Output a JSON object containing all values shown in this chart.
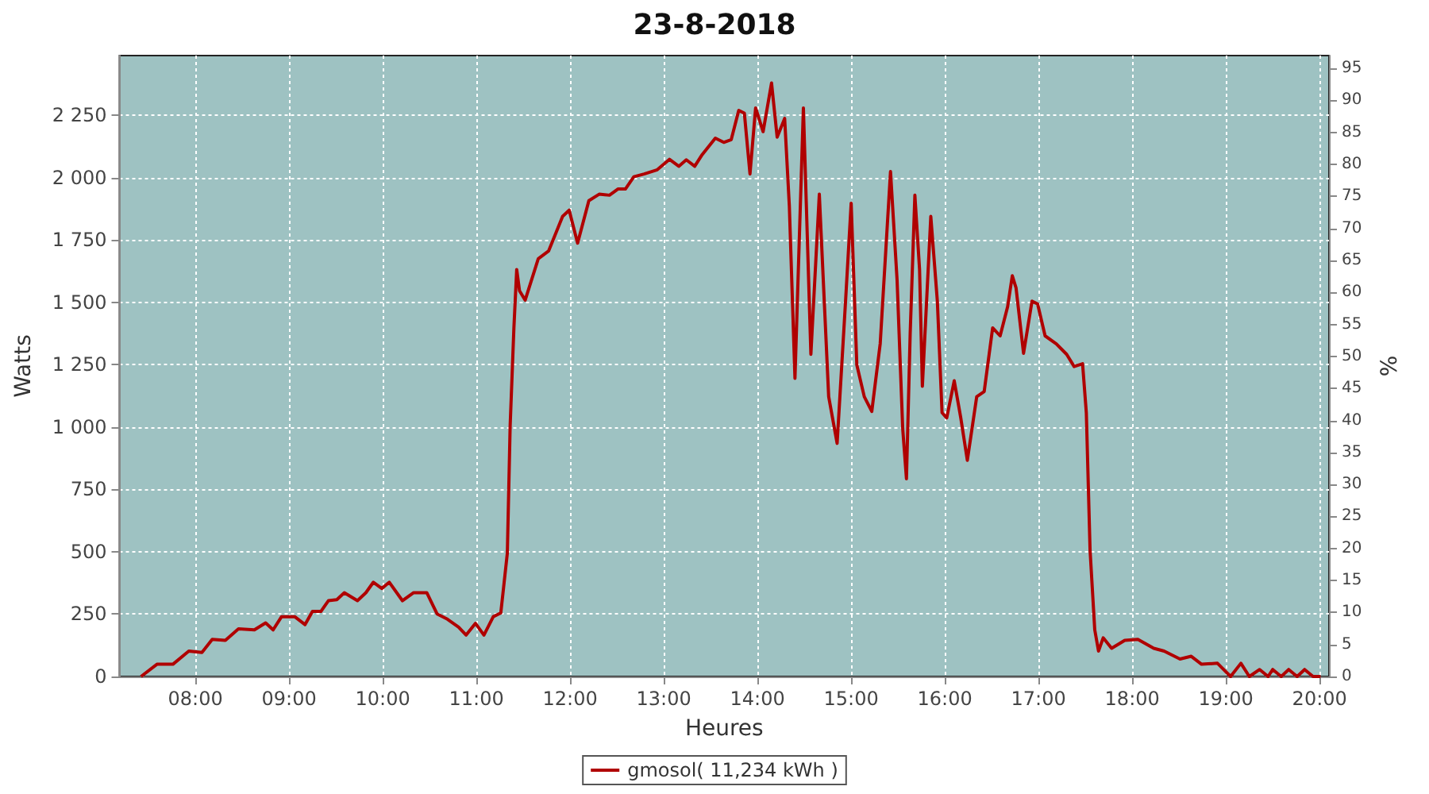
{
  "chart_data": {
    "type": "line",
    "title": "23-8-2018",
    "xlabel": "Heures",
    "ylabel": "Watts",
    "y2label": "%",
    "x": [
      7.42,
      7.59,
      7.76,
      7.93,
      8.07,
      8.18,
      8.32,
      8.46,
      8.63,
      8.75,
      8.83,
      8.92,
      9.06,
      9.17,
      9.25,
      9.34,
      9.42,
      9.51,
      9.59,
      9.73,
      9.82,
      9.9,
      9.99,
      10.07,
      10.21,
      10.33,
      10.47,
      10.58,
      10.69,
      10.81,
      10.89,
      10.99,
      11.08,
      11.18,
      11.26,
      11.29,
      11.33,
      11.36,
      11.4,
      11.43,
      11.46,
      11.52,
      11.66,
      11.77,
      11.92,
      11.99,
      12.08,
      12.2,
      12.31,
      12.42,
      12.51,
      12.59,
      12.68,
      12.79,
      12.93,
      13.06,
      13.16,
      13.24,
      13.33,
      13.41,
      13.55,
      13.64,
      13.72,
      13.8,
      13.86,
      13.92,
      13.98,
      14.06,
      14.15,
      14.21,
      14.29,
      14.34,
      14.4,
      14.49,
      14.57,
      14.66,
      14.76,
      14.85,
      14.94,
      15.0,
      15.06,
      15.14,
      15.22,
      15.31,
      15.42,
      15.49,
      15.55,
      15.59,
      15.63,
      15.68,
      15.73,
      15.76,
      15.85,
      15.92,
      15.97,
      16.02,
      16.1,
      16.17,
      16.24,
      16.34,
      16.42,
      16.51,
      16.59,
      16.67,
      16.72,
      16.76,
      16.84,
      16.93,
      16.99,
      17.07,
      17.19,
      17.3,
      17.38,
      17.47,
      17.51,
      17.55,
      17.6,
      17.64,
      17.69,
      17.78,
      17.92,
      18.06,
      18.23,
      18.34,
      18.51,
      18.63,
      18.74,
      18.91,
      19.05,
      19.16,
      19.25,
      19.36,
      19.45,
      19.5,
      19.59,
      19.67,
      19.76,
      19.84,
      19.93,
      20.01
    ],
    "series": [
      {
        "name": "gmosol( 11,234 kWh )",
        "color": "#b00000",
        "values": [
          0,
          49,
          49,
          102,
          96,
          149,
          145,
          191,
          187,
          215,
          187,
          240,
          240,
          208,
          261,
          261,
          304,
          308,
          336,
          304,
          336,
          378,
          353,
          378,
          304,
          336,
          336,
          251,
          230,
          198,
          166,
          213,
          166,
          240,
          255,
          357,
          495,
          1005,
          1398,
          1632,
          1547,
          1509,
          1675,
          1706,
          1845,
          1870,
          1738,
          1908,
          1934,
          1930,
          1955,
          1955,
          2004,
          2015,
          2032,
          2074,
          2046,
          2072,
          2046,
          2093,
          2159,
          2142,
          2153,
          2270,
          2259,
          2015,
          2280,
          2185,
          2380,
          2163,
          2238,
          1887,
          1196,
          2280,
          1292,
          1934,
          1122,
          935,
          1505,
          1898,
          1250,
          1122,
          1063,
          1335,
          2025,
          1590,
          995,
          793,
          1377,
          1930,
          1632,
          1164,
          1845,
          1505,
          1058,
          1037,
          1186,
          1037,
          867,
          1122,
          1143,
          1398,
          1366,
          1483,
          1607,
          1558,
          1296,
          1505,
          1494,
          1366,
          1334,
          1292,
          1243,
          1254,
          1058,
          506,
          187,
          102,
          155,
          113,
          145,
          149,
          113,
          102,
          70,
          81,
          49,
          53,
          0,
          53,
          0,
          28,
          0,
          28,
          0,
          28,
          0,
          28,
          0,
          0
        ]
      }
    ],
    "xlim": [
      7.19,
      20.1
    ],
    "xticks": [
      {
        "value": 8,
        "label": "08:00"
      },
      {
        "value": 9,
        "label": "09:00"
      },
      {
        "value": 10,
        "label": "10:00"
      },
      {
        "value": 11,
        "label": "11:00"
      },
      {
        "value": 12,
        "label": "12:00"
      },
      {
        "value": 13,
        "label": "13:00"
      },
      {
        "value": 14,
        "label": "14:00"
      },
      {
        "value": 15,
        "label": "15:00"
      },
      {
        "value": 16,
        "label": "16:00"
      },
      {
        "value": 17,
        "label": "17:00"
      },
      {
        "value": 18,
        "label": "18:00"
      },
      {
        "value": 19,
        "label": "19:00"
      },
      {
        "value": 20,
        "label": "20:00"
      }
    ],
    "ylim": [
      0,
      2490
    ],
    "yticks": [
      0,
      250,
      500,
      750,
      {
        "value": 1000,
        "label": "1 000"
      },
      {
        "value": 1250,
        "label": "1 250"
      },
      {
        "value": 1500,
        "label": "1 500"
      },
      {
        "value": 1750,
        "label": "1 750"
      },
      {
        "value": 2000,
        "label": "2 000"
      },
      {
        "value": 2250,
        "label": "2 250"
      }
    ],
    "y2lim": [
      0,
      97
    ],
    "y2ticks": [
      0,
      5,
      10,
      15,
      20,
      25,
      30,
      35,
      40,
      45,
      50,
      55,
      60,
      65,
      70,
      75,
      80,
      85,
      90,
      95
    ],
    "grid": true,
    "legend": "bottom",
    "marker": "none",
    "line_style": "solid"
  }
}
